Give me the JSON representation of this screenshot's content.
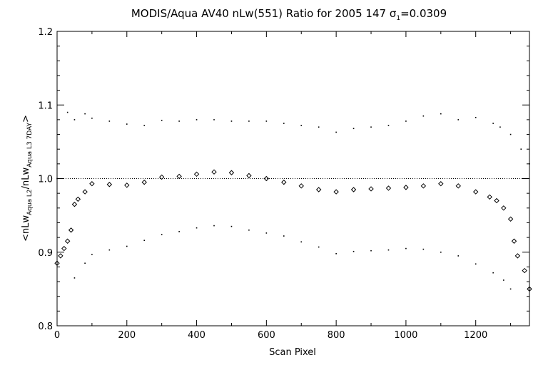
{
  "chart_data": {
    "type": "scatter",
    "title": {
      "main": "MODIS/Aqua AV40 nLw(551) Ratio for 2005 147 ",
      "sigma": "σ",
      "sigma_sub": "1",
      "sigma_value": "=0.0309"
    },
    "xlabel": "Scan Pixel",
    "ylabel": {
      "open": "<nLw",
      "sub1": "Aqua L2",
      "mid": "/nLw",
      "sub2": "Aqua L3 7DAY",
      "close": ">"
    },
    "xlim": [
      0,
      1354
    ],
    "ylim": [
      0.8,
      1.2
    ],
    "xticks": [
      "0",
      "200",
      "400",
      "600",
      "800",
      "1000",
      "1200"
    ],
    "yticks": [
      "0.8",
      "0.9",
      "1.0",
      "1.1",
      "1.2"
    ],
    "reference_line": 1.0,
    "series": [
      {
        "role": "mean",
        "marker": "diamond",
        "x": [
          0,
          10,
          20,
          30,
          40,
          50,
          60,
          80,
          100,
          150,
          200,
          250,
          300,
          350,
          400,
          450,
          500,
          550,
          600,
          650,
          700,
          750,
          800,
          850,
          900,
          950,
          1000,
          1050,
          1100,
          1150,
          1200,
          1240,
          1260,
          1280,
          1300,
          1310,
          1320,
          1340,
          1354
        ],
        "y": [
          0.885,
          0.895,
          0.905,
          0.915,
          0.93,
          0.965,
          0.972,
          0.982,
          0.993,
          0.992,
          0.991,
          0.995,
          1.002,
          1.003,
          1.006,
          1.009,
          1.008,
          1.004,
          1.0,
          0.995,
          0.99,
          0.985,
          0.982,
          0.985,
          0.986,
          0.987,
          0.988,
          0.99,
          0.993,
          0.99,
          0.982,
          0.975,
          0.97,
          0.96,
          0.945,
          0.915,
          0.895,
          0.875,
          0.85
        ]
      },
      {
        "role": "upper",
        "marker": "dot",
        "x": [
          0,
          30,
          50,
          80,
          100,
          150,
          200,
          250,
          300,
          350,
          400,
          450,
          500,
          550,
          600,
          650,
          700,
          750,
          800,
          850,
          900,
          950,
          1000,
          1050,
          1100,
          1150,
          1200,
          1250,
          1270,
          1300,
          1330,
          1354
        ],
        "y": [
          1.0,
          1.09,
          1.08,
          1.088,
          1.082,
          1.078,
          1.074,
          1.072,
          1.079,
          1.078,
          1.08,
          1.08,
          1.078,
          1.078,
          1.078,
          1.075,
          1.072,
          1.07,
          1.063,
          1.068,
          1.07,
          1.072,
          1.078,
          1.085,
          1.088,
          1.08,
          1.083,
          1.075,
          1.07,
          1.06,
          1.04,
          1.02
        ]
      },
      {
        "role": "lower",
        "marker": "dot",
        "x": [
          50,
          80,
          100,
          150,
          200,
          250,
          300,
          350,
          400,
          450,
          500,
          550,
          600,
          650,
          700,
          750,
          800,
          850,
          900,
          950,
          1000,
          1050,
          1100,
          1150,
          1200,
          1250,
          1280,
          1300
        ],
        "y": [
          0.865,
          0.885,
          0.897,
          0.903,
          0.908,
          0.916,
          0.924,
          0.928,
          0.933,
          0.936,
          0.935,
          0.93,
          0.926,
          0.922,
          0.914,
          0.907,
          0.898,
          0.901,
          0.902,
          0.903,
          0.905,
          0.904,
          0.9,
          0.895,
          0.884,
          0.872,
          0.862,
          0.85
        ]
      }
    ]
  }
}
